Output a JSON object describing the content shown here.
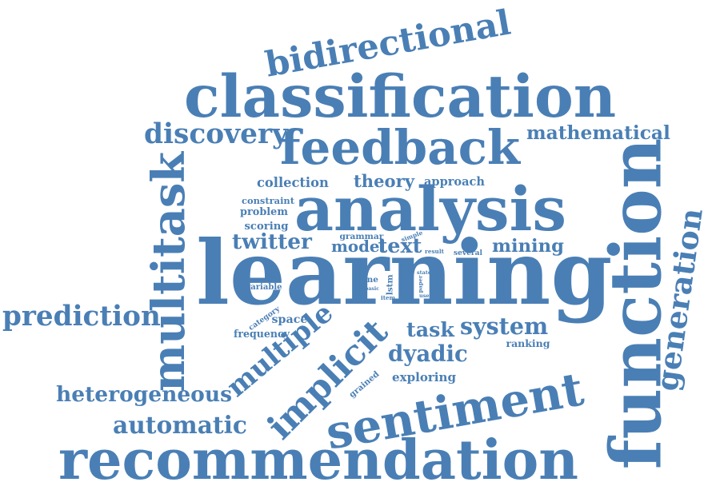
{
  "color": "#4a7fb5",
  "words": [
    {
      "text": "learning"
    },
    {
      "text": "recommendation"
    },
    {
      "text": "function"
    },
    {
      "text": "classification"
    },
    {
      "text": "analysis"
    },
    {
      "text": "sentiment"
    },
    {
      "text": "feedback"
    },
    {
      "text": "multitask"
    },
    {
      "text": "bidirectional"
    },
    {
      "text": "implicit"
    },
    {
      "text": "prediction"
    },
    {
      "text": "multiple"
    },
    {
      "text": "generation"
    },
    {
      "text": "discovery"
    },
    {
      "text": "dyadic"
    },
    {
      "text": "automatic"
    },
    {
      "text": "heterogeneous"
    },
    {
      "text": "mathematical"
    },
    {
      "text": "system"
    },
    {
      "text": "twitter"
    },
    {
      "text": "text"
    },
    {
      "text": "mining"
    },
    {
      "text": "task"
    },
    {
      "text": "collection"
    },
    {
      "text": "theory"
    },
    {
      "text": "approach"
    },
    {
      "text": "model"
    },
    {
      "text": "exploring"
    },
    {
      "text": "problem"
    },
    {
      "text": "scoring"
    },
    {
      "text": "constraint"
    },
    {
      "text": "space"
    },
    {
      "text": "ranking"
    },
    {
      "text": "frequency"
    },
    {
      "text": "grammar"
    },
    {
      "text": "variable"
    },
    {
      "text": "grained"
    },
    {
      "text": "category"
    },
    {
      "text": "lstm"
    },
    {
      "text": "fine"
    },
    {
      "text": "item"
    },
    {
      "text": "basic"
    },
    {
      "text": "simple"
    },
    {
      "text": "result"
    },
    {
      "text": "several"
    },
    {
      "text": "paper"
    },
    {
      "text": "state"
    },
    {
      "text": "user"
    }
  ]
}
